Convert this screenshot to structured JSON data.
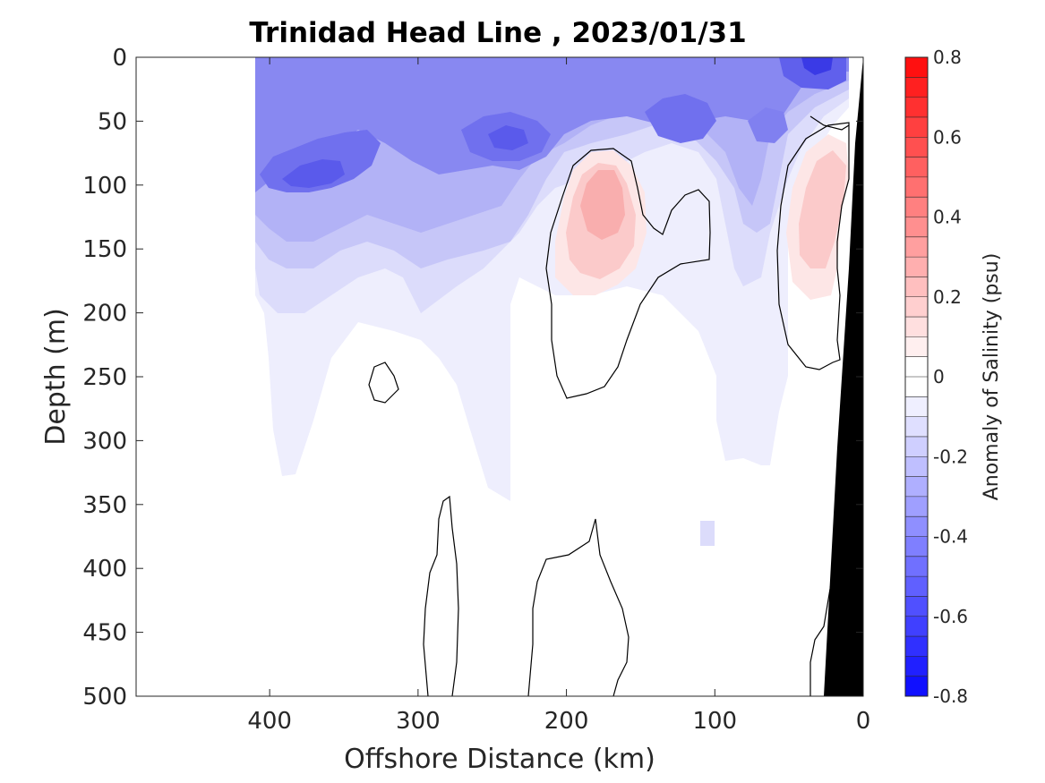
{
  "chart_data": {
    "type": "contour",
    "title": "Trinidad Head Line , 2023/01/31",
    "xlabel": "Offshore Distance (km)",
    "ylabel": "Depth (m)",
    "x_ticks": [
      400,
      300,
      200,
      100,
      0
    ],
    "y_ticks": [
      0,
      50,
      100,
      150,
      200,
      250,
      300,
      350,
      400,
      450,
      500
    ],
    "xlim": [
      490,
      0
    ],
    "ylim": [
      0,
      500
    ],
    "x_reversed": true,
    "y_reversed": true,
    "grid": false,
    "colorbar": {
      "label": "Anomaly of Salinity (psu)",
      "ticks": [
        0.8,
        0.6,
        0.4,
        0.2,
        0,
        -0.2,
        -0.4,
        -0.6,
        -0.8
      ],
      "range": [
        -0.8,
        0.8
      ],
      "min_color": "#0000ff",
      "max_color": "#ff0000",
      "mid_color": "#ffffff"
    },
    "anomaly_features": [
      {
        "sign": "negative",
        "x": [
          410,
          10
        ],
        "depth": [
          0,
          330
        ],
        "description_value": -0.3
      },
      {
        "sign": "negative",
        "x": 375,
        "depth": 110,
        "value": -0.5
      },
      {
        "sign": "negative",
        "x": 240,
        "depth": 75,
        "value": -0.45
      },
      {
        "sign": "negative",
        "x": 120,
        "depth": 60,
        "value": -0.45
      },
      {
        "sign": "negative",
        "x": 30,
        "depth": 5,
        "value": -0.55
      },
      {
        "sign": "positive",
        "x": 175,
        "depth": 110,
        "value": 0.25
      },
      {
        "sign": "positive",
        "x": 30,
        "depth": 130,
        "value": 0.2
      }
    ],
    "zero_contours": true,
    "land_mask_color": "#000000"
  }
}
